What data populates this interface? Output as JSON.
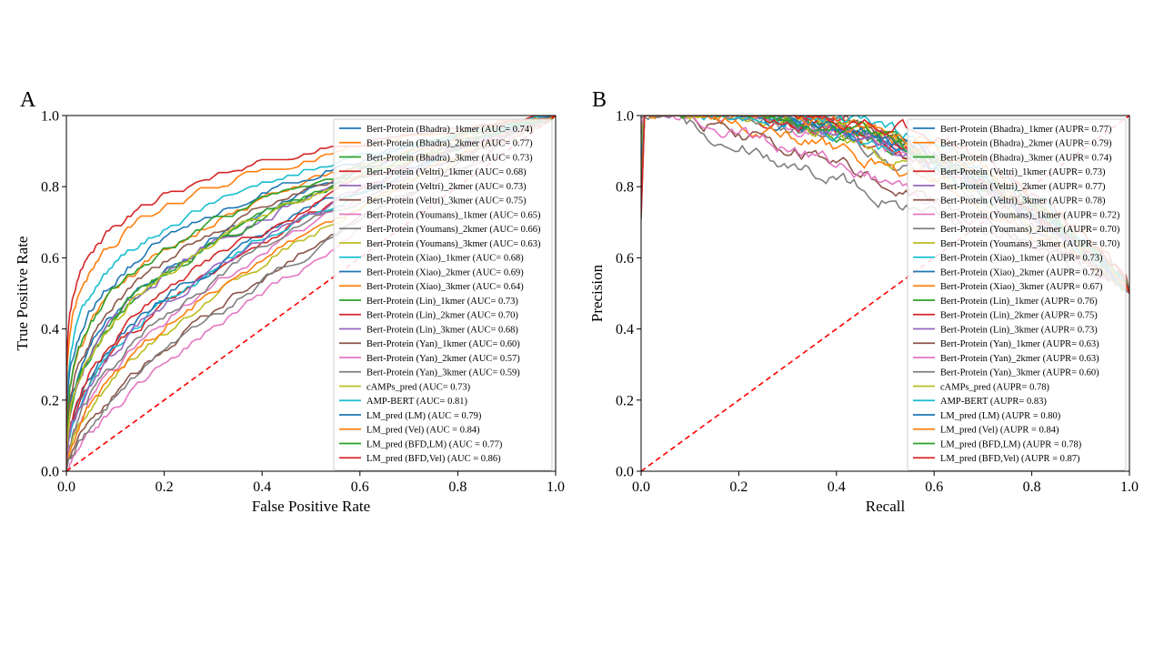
{
  "chart_data": [
    {
      "type": "line",
      "panel_label": "A",
      "title": "",
      "xlabel": "False Positive Rate",
      "ylabel": "True Positive Rate",
      "xlim": [
        0.0,
        1.0
      ],
      "ylim": [
        0.0,
        1.0
      ],
      "xticks": [
        "0.0",
        "0.2",
        "0.4",
        "0.6",
        "0.8",
        "1.0"
      ],
      "yticks": [
        "0.0",
        "0.2",
        "0.4",
        "0.6",
        "0.8",
        "1.0"
      ],
      "grid": false,
      "legend_position": "upper-right",
      "reference_line": {
        "x": [
          0,
          1
        ],
        "y": [
          0,
          1
        ],
        "style": "dashed",
        "color": "#ff0000"
      },
      "series": [
        {
          "legend": "Bert-Protein (Bhadra)_1kmer (AUC= 0.74)",
          "value": 0.74,
          "color": "#1f77b4"
        },
        {
          "legend": "Bert-Protein (Bhadra)_2kmer (AUC= 0.77)",
          "value": 0.77,
          "color": "#ff7f0e"
        },
        {
          "legend": "Bert-Protein (Bhadra)_3kmer (AUC= 0.73)",
          "value": 0.73,
          "color": "#2ca02c"
        },
        {
          "legend": "Bert-Protein (Veltri)_1kmer (AUC= 0.68)",
          "value": 0.68,
          "color": "#d62728"
        },
        {
          "legend": "Bert-Protein (Veltri)_2kmer (AUC= 0.73)",
          "value": 0.73,
          "color": "#9467bd"
        },
        {
          "legend": "Bert-Protein (Veltri)_3kmer (AUC= 0.75)",
          "value": 0.75,
          "color": "#8c564b"
        },
        {
          "legend": "Bert-Protein (Youmans)_1kmer (AUC= 0.65)",
          "value": 0.65,
          "color": "#e377c2"
        },
        {
          "legend": "Bert-Protein (Youmans)_2kmer (AUC= 0.66)",
          "value": 0.66,
          "color": "#7f7f7f"
        },
        {
          "legend": "Bert-Protein (Youmans)_3kmer (AUC= 0.63)",
          "value": 0.63,
          "color": "#bcbd22"
        },
        {
          "legend": "Bert-Protein (Xiao)_1kmer (AUC= 0.68)",
          "value": 0.68,
          "color": "#17becf"
        },
        {
          "legend": "Bert-Protein (Xiao)_2kmer (AUC= 0.69)",
          "value": 0.69,
          "color": "#1f77b4"
        },
        {
          "legend": "Bert-Protein (Xiao)_3kmer (AUC= 0.64)",
          "value": 0.64,
          "color": "#ff7f0e"
        },
        {
          "legend": "Bert-Protein (Lin)_1kmer (AUC= 0.73)",
          "value": 0.73,
          "color": "#2ca02c"
        },
        {
          "legend": "Bert-Protein (Lin)_2kmer (AUC= 0.70)",
          "value": 0.7,
          "color": "#d62728"
        },
        {
          "legend": "Bert-Protein (Lin)_3kmer (AUC= 0.68)",
          "value": 0.68,
          "color": "#9467bd"
        },
        {
          "legend": "Bert-Protein (Yan)_1kmer (AUC= 0.60)",
          "value": 0.6,
          "color": "#8c564b"
        },
        {
          "legend": "Bert-Protein (Yan)_2kmer (AUC= 0.57)",
          "value": 0.57,
          "color": "#e377c2"
        },
        {
          "legend": "Bert-Protein (Yan)_3kmer (AUC= 0.59)",
          "value": 0.59,
          "color": "#7f7f7f"
        },
        {
          "legend": "cAMPs_pred (AUC= 0.73)",
          "value": 0.73,
          "color": "#bcbd22"
        },
        {
          "legend": "AMP-BERT (AUC= 0.81)",
          "value": 0.81,
          "color": "#17becf"
        },
        {
          "legend": "LM_pred (LM) (AUC = 0.79)",
          "value": 0.79,
          "color": "#1f77b4"
        },
        {
          "legend": "LM_pred (Vel) (AUC = 0.84)",
          "value": 0.84,
          "color": "#ff7f0e"
        },
        {
          "legend": "LM_pred (BFD,LM) (AUC = 0.77)",
          "value": 0.77,
          "color": "#2ca02c"
        },
        {
          "legend": "LM_pred (BFD,Vel) (AUC = 0.86)",
          "value": 0.86,
          "color": "#d62728"
        }
      ]
    },
    {
      "type": "line",
      "panel_label": "B",
      "title": "",
      "xlabel": "Recall",
      "ylabel": "Precision",
      "xlim": [
        0.0,
        1.0
      ],
      "ylim": [
        0.0,
        1.0
      ],
      "xticks": [
        "0.0",
        "0.2",
        "0.4",
        "0.6",
        "0.8",
        "1.0"
      ],
      "yticks": [
        "0.0",
        "0.2",
        "0.4",
        "0.6",
        "0.8",
        "1.0"
      ],
      "grid": false,
      "legend_position": "upper-right",
      "reference_line": {
        "x": [
          0,
          1
        ],
        "y": [
          0,
          1
        ],
        "style": "dashed",
        "color": "#ff0000"
      },
      "series": [
        {
          "legend": "Bert-Protein (Bhadra)_1kmer (AUPR= 0.77)",
          "value": 0.77,
          "color": "#1f77b4"
        },
        {
          "legend": "Bert-Protein (Bhadra)_2kmer (AUPR= 0.79)",
          "value": 0.79,
          "color": "#ff7f0e"
        },
        {
          "legend": "Bert-Protein (Bhadra)_3kmer (AUPR= 0.74)",
          "value": 0.74,
          "color": "#2ca02c"
        },
        {
          "legend": "Bert-Protein (Veltri)_1kmer (AUPR= 0.73)",
          "value": 0.73,
          "color": "#d62728"
        },
        {
          "legend": "Bert-Protein (Veltri)_2kmer (AUPR= 0.77)",
          "value": 0.77,
          "color": "#9467bd"
        },
        {
          "legend": "Bert-Protein (Veltri)_3kmer (AUPR= 0.78)",
          "value": 0.78,
          "color": "#8c564b"
        },
        {
          "legend": "Bert-Protein (Youmans)_1kmer (AUPR= 0.72)",
          "value": 0.72,
          "color": "#e377c2"
        },
        {
          "legend": "Bert-Protein (Youmans)_2kmer (AUPR= 0.70)",
          "value": 0.7,
          "color": "#7f7f7f"
        },
        {
          "legend": "Bert-Protein (Youmans)_3kmer (AUPR= 0.70)",
          "value": 0.7,
          "color": "#bcbd22"
        },
        {
          "legend": "Bert-Protein (Xiao)_1kmer (AUPR= 0.73)",
          "value": 0.73,
          "color": "#17becf"
        },
        {
          "legend": "Bert-Protein (Xiao)_2kmer (AUPR= 0.72)",
          "value": 0.72,
          "color": "#1f77b4"
        },
        {
          "legend": "Bert-Protein (Xiao)_3kmer (AUPR= 0.67)",
          "value": 0.67,
          "color": "#ff7f0e"
        },
        {
          "legend": "Bert-Protein (Lin)_1kmer (AUPR= 0.76)",
          "value": 0.76,
          "color": "#2ca02c"
        },
        {
          "legend": "Bert-Protein (Lin)_2kmer (AUPR= 0.75)",
          "value": 0.75,
          "color": "#d62728"
        },
        {
          "legend": "Bert-Protein (Lin)_3kmer (AUPR= 0.73)",
          "value": 0.73,
          "color": "#9467bd"
        },
        {
          "legend": "Bert-Protein (Yan)_1kmer (AUPR= 0.63)",
          "value": 0.63,
          "color": "#8c564b"
        },
        {
          "legend": "Bert-Protein (Yan)_2kmer (AUPR= 0.63)",
          "value": 0.63,
          "color": "#e377c2"
        },
        {
          "legend": "Bert-Protein (Yan)_3kmer (AUPR= 0.60)",
          "value": 0.6,
          "color": "#7f7f7f"
        },
        {
          "legend": "cAMPs_pred (AUPR= 0.78)",
          "value": 0.78,
          "color": "#bcbd22"
        },
        {
          "legend": "AMP-BERT (AUPR= 0.83)",
          "value": 0.83,
          "color": "#17becf"
        },
        {
          "legend": "LM_pred (LM) (AUPR = 0.80)",
          "value": 0.8,
          "color": "#1f77b4"
        },
        {
          "legend": "LM_pred (Vel) (AUPR = 0.84)",
          "value": 0.84,
          "color": "#ff7f0e"
        },
        {
          "legend": "LM_pred (BFD,LM) (AUPR = 0.78)",
          "value": 0.78,
          "color": "#2ca02c"
        },
        {
          "legend": "LM_pred (BFD,Vel) (AUPR = 0.87)",
          "value": 0.87,
          "color": "#d62728"
        }
      ]
    }
  ]
}
